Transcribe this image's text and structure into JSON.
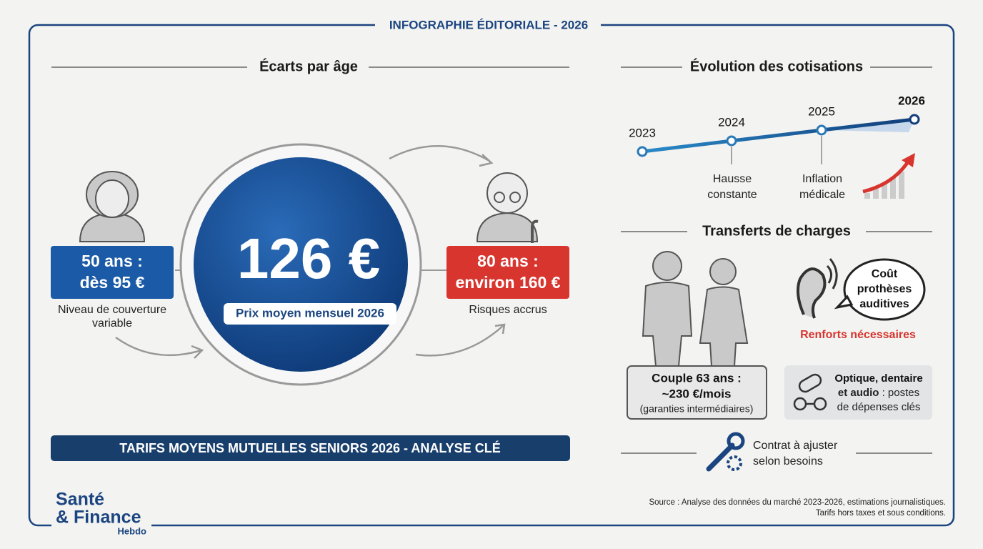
{
  "header": {
    "title": "INFOGRAPHIE ÉDITORIALE - 2026"
  },
  "age_gaps": {
    "title": "Écarts par âge",
    "left": {
      "label": [
        "50 ans :",
        "dès 95 €"
      ],
      "note": [
        "Niveau de couverture",
        "variable"
      ]
    },
    "center": {
      "value": "126 €",
      "caption": "Prix moyen mensuel 2026"
    },
    "right": {
      "label": [
        "80 ans :",
        "environ 160 €"
      ],
      "note": [
        "Risques accrus"
      ]
    },
    "banner": "TARIFS MOYENS MUTUELLES SENIORS 2026 - ANALYSE CLÉ"
  },
  "evolution": {
    "title": "Évolution des cotisations",
    "years": [
      "2023",
      "2024",
      "2025",
      "2026"
    ],
    "notes": [
      [
        "Hausse",
        "constante"
      ],
      [
        "Inflation",
        "médicale"
      ]
    ]
  },
  "transfers": {
    "title": "Transferts de charges",
    "couple": [
      "Couple 63 ans :",
      "~230 €/mois",
      "(garanties intermédiaires)"
    ],
    "hearing": {
      "bubble": [
        "Coût",
        "prothèses",
        "auditives"
      ],
      "note": "Renforts nécessaires"
    },
    "optics": [
      "Optique, dentaire",
      "et audio",
      ": postes",
      "de dépenses clés"
    ],
    "adjust": [
      "Contrat à ajuster",
      "selon besoins"
    ]
  },
  "source": [
    "Source : Analyse des données du marché 2023-2026, estimations journalistiques.",
    "Tarifs hors taxes et sous conditions."
  ],
  "brand": {
    "name": [
      "Santé",
      "& Finance"
    ],
    "sub": "Hebdo"
  }
}
